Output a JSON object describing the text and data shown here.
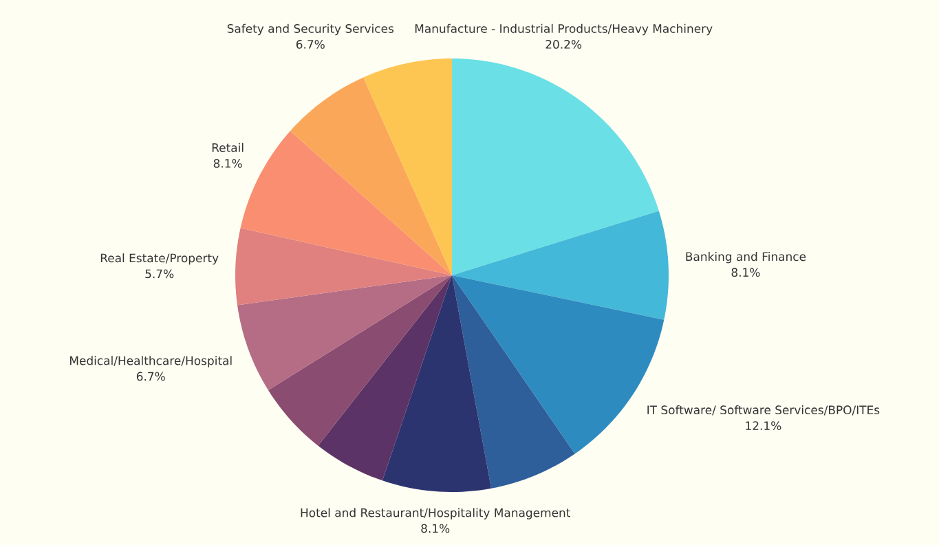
{
  "chart_data": {
    "type": "pie",
    "categories": [
      "Manufacture - Industrial Products/Heavy Machinery",
      "Banking and Finance",
      "IT Software/ Software Services/BPO/ITEs",
      null,
      "Hotel and Restaurant/Hospitality Management",
      null,
      null,
      "Medical/Healthcare/Hospital",
      "Real Estate/Property",
      "Retail",
      null,
      "Safety and Security Services"
    ],
    "values": [
      20.2,
      8.1,
      12.1,
      6.7,
      8.1,
      5.4,
      5.5,
      6.7,
      5.7,
      8.1,
      6.7,
      6.7
    ],
    "value_labels": [
      "20.2%",
      "8.1%",
      "12.1%",
      null,
      "8.1%",
      null,
      null,
      "6.7%",
      "5.7%",
      "8.1%",
      null,
      "6.7%"
    ],
    "colors": [
      "#6ae0e6",
      "#44b8d8",
      "#2e8bc0",
      "#2e5f9a",
      "#2c3470",
      "#5c3366",
      "#8a4c70",
      "#b56d85",
      "#e0807f",
      "#f98f70",
      "#fba75a",
      "#fdc652"
    ]
  }
}
